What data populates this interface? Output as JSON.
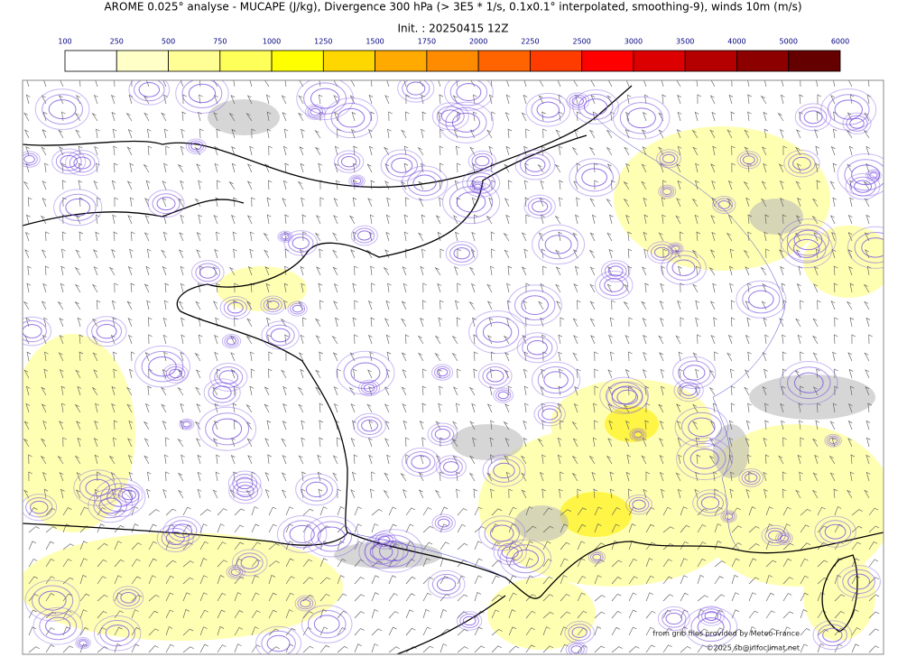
{
  "title": "AROME 0.025° analyse - MUCAPE (J/kg), Divergence 300 hPa (> 3E5 * 1/s, 0.1x0.1° interpolated, smoothing-9), winds 10m (m/s)",
  "init": "Init. : 20250415 12Z",
  "colorbar": {
    "ticks": [
      100,
      250,
      500,
      750,
      1000,
      1250,
      1500,
      1750,
      2000,
      2250,
      2500,
      3000,
      3500,
      4000,
      5000,
      6000
    ],
    "colors": [
      "#ffffff",
      "#ffffc8",
      "#ffff96",
      "#ffff5a",
      "#ffff00",
      "#ffd700",
      "#ffaa00",
      "#ff8c00",
      "#ff6400",
      "#ff3c00",
      "#ff0000",
      "#dc0000",
      "#b40000",
      "#8c0000",
      "#640000"
    ]
  },
  "credits": [
    "from grib files provided by Meteo-France",
    "©2025 sb@infoclimat.net"
  ]
}
